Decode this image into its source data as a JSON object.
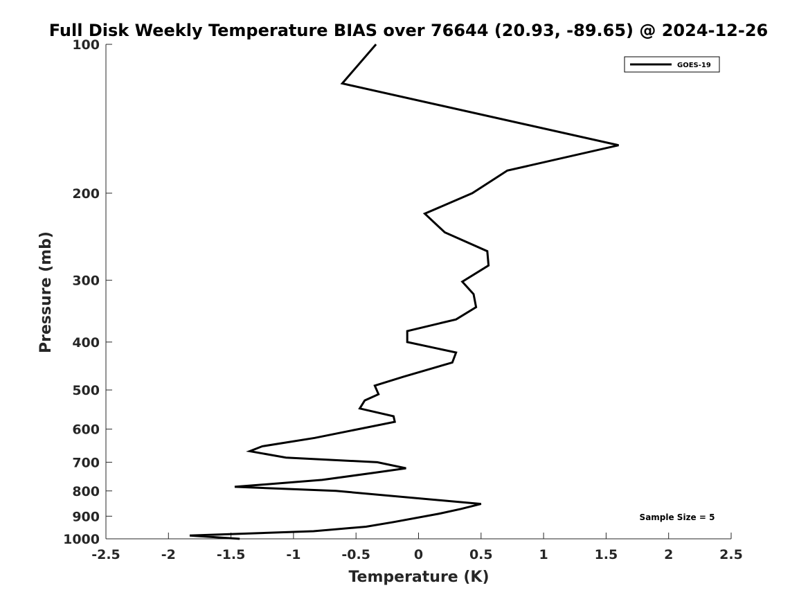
{
  "chart_data": {
    "type": "line",
    "title": "Full Disk Weekly Temperature BIAS over 76644 (20.93, -89.65) @ 2024-12-26",
    "xlabel": "Temperature (K)",
    "ylabel": "Pressure (mb)",
    "xlim": [
      -2.5,
      2.5
    ],
    "ylim": [
      1000,
      100
    ],
    "y_scale": "log",
    "y_reversed": true,
    "x_ticks": [
      -2.5,
      -2,
      -1.5,
      -1,
      -0.5,
      0,
      0.5,
      1,
      1.5,
      2,
      2.5
    ],
    "x_tick_labels": [
      "-2.5",
      "-2",
      "-1.5",
      "-1",
      "-0.5",
      "0",
      "0.5",
      "1",
      "1.5",
      "2",
      "2.5"
    ],
    "y_ticks": [
      100,
      200,
      300,
      400,
      500,
      600,
      700,
      800,
      900,
      1000
    ],
    "y_tick_labels": [
      "100",
      "200",
      "300",
      "400",
      "500",
      "600",
      "700",
      "800",
      "900",
      "1000"
    ],
    "grid": false,
    "legend_position": "top-right",
    "series": [
      {
        "name": "GOES-19",
        "color": "#000000",
        "points": [
          {
            "x": -0.34,
            "y": 100
          },
          {
            "x": -0.61,
            "y": 120
          },
          {
            "x": 1.6,
            "y": 160
          },
          {
            "x": 0.71,
            "y": 180
          },
          {
            "x": 0.43,
            "y": 200
          },
          {
            "x": 0.05,
            "y": 220
          },
          {
            "x": 0.21,
            "y": 240
          },
          {
            "x": 0.55,
            "y": 262
          },
          {
            "x": 0.56,
            "y": 280
          },
          {
            "x": 0.35,
            "y": 302
          },
          {
            "x": 0.44,
            "y": 320
          },
          {
            "x": 0.46,
            "y": 340
          },
          {
            "x": 0.3,
            "y": 360
          },
          {
            "x": -0.09,
            "y": 380
          },
          {
            "x": -0.09,
            "y": 400
          },
          {
            "x": 0.3,
            "y": 420
          },
          {
            "x": 0.27,
            "y": 440
          },
          {
            "x": -0.12,
            "y": 470
          },
          {
            "x": -0.35,
            "y": 490
          },
          {
            "x": -0.32,
            "y": 510
          },
          {
            "x": -0.43,
            "y": 525
          },
          {
            "x": -0.47,
            "y": 545
          },
          {
            "x": -0.2,
            "y": 565
          },
          {
            "x": -0.19,
            "y": 580
          },
          {
            "x": -0.48,
            "y": 600
          },
          {
            "x": -0.83,
            "y": 625
          },
          {
            "x": -1.25,
            "y": 650
          },
          {
            "x": -1.35,
            "y": 665
          },
          {
            "x": -1.06,
            "y": 685
          },
          {
            "x": -0.33,
            "y": 700
          },
          {
            "x": -0.1,
            "y": 720
          },
          {
            "x": -0.35,
            "y": 735
          },
          {
            "x": -0.77,
            "y": 760
          },
          {
            "x": -1.47,
            "y": 785
          },
          {
            "x": -0.66,
            "y": 800
          },
          {
            "x": 0.5,
            "y": 850
          },
          {
            "x": 0.34,
            "y": 870
          },
          {
            "x": 0.16,
            "y": 890
          },
          {
            "x": -0.2,
            "y": 925
          },
          {
            "x": -0.42,
            "y": 945
          },
          {
            "x": -0.84,
            "y": 965
          },
          {
            "x": -1.83,
            "y": 985
          },
          {
            "x": -1.43,
            "y": 1000
          }
        ]
      }
    ],
    "annotations": [
      {
        "text": "Sample Size = 5"
      }
    ]
  }
}
